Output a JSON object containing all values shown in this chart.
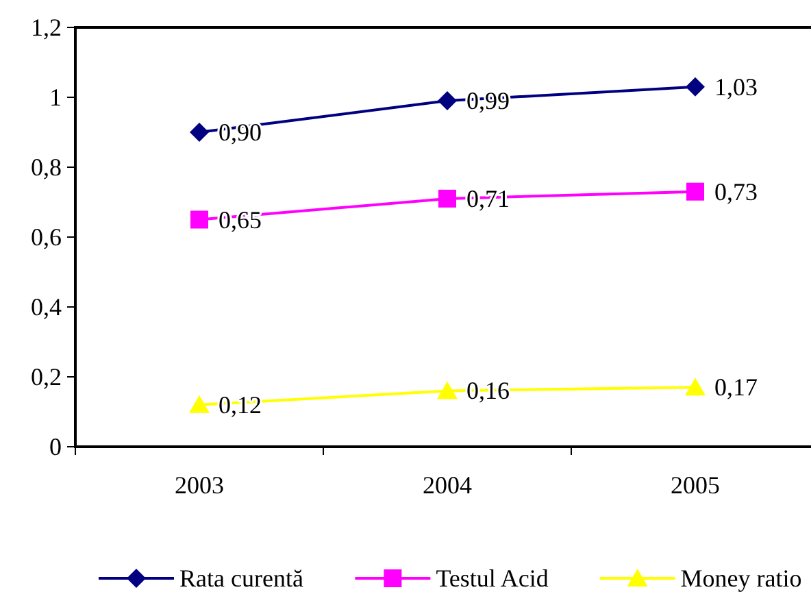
{
  "chart_data": {
    "type": "line",
    "categories": [
      "2003",
      "2004",
      "2005"
    ],
    "series": [
      {
        "name": "Rata curentă",
        "color": "#000080",
        "marker": "diamond",
        "values": [
          0.9,
          0.99,
          1.03
        ],
        "value_labels": [
          "0,90",
          "0,99",
          "1,03"
        ]
      },
      {
        "name": "Testul Acid",
        "color": "#ff00ff",
        "marker": "square",
        "values": [
          0.65,
          0.71,
          0.73
        ],
        "value_labels": [
          "0,65",
          "0,71",
          "0,73"
        ]
      },
      {
        "name": "Money ratio",
        "color": "#ffff00",
        "marker": "triangle",
        "values": [
          0.12,
          0.16,
          0.17
        ],
        "value_labels": [
          "0,12",
          "0,16",
          "0,17"
        ]
      }
    ],
    "ylim": [
      0,
      1.2
    ],
    "yticks": [
      {
        "value": 0,
        "label": "0"
      },
      {
        "value": 0.2,
        "label": "0,2"
      },
      {
        "value": 0.4,
        "label": "0,4"
      },
      {
        "value": 0.6,
        "label": "0,6"
      },
      {
        "value": 0.8,
        "label": "0,8"
      },
      {
        "value": 1,
        "label": "1"
      },
      {
        "value": 1.2,
        "label": "1,2"
      }
    ],
    "grid": false,
    "legend": "bottom"
  }
}
